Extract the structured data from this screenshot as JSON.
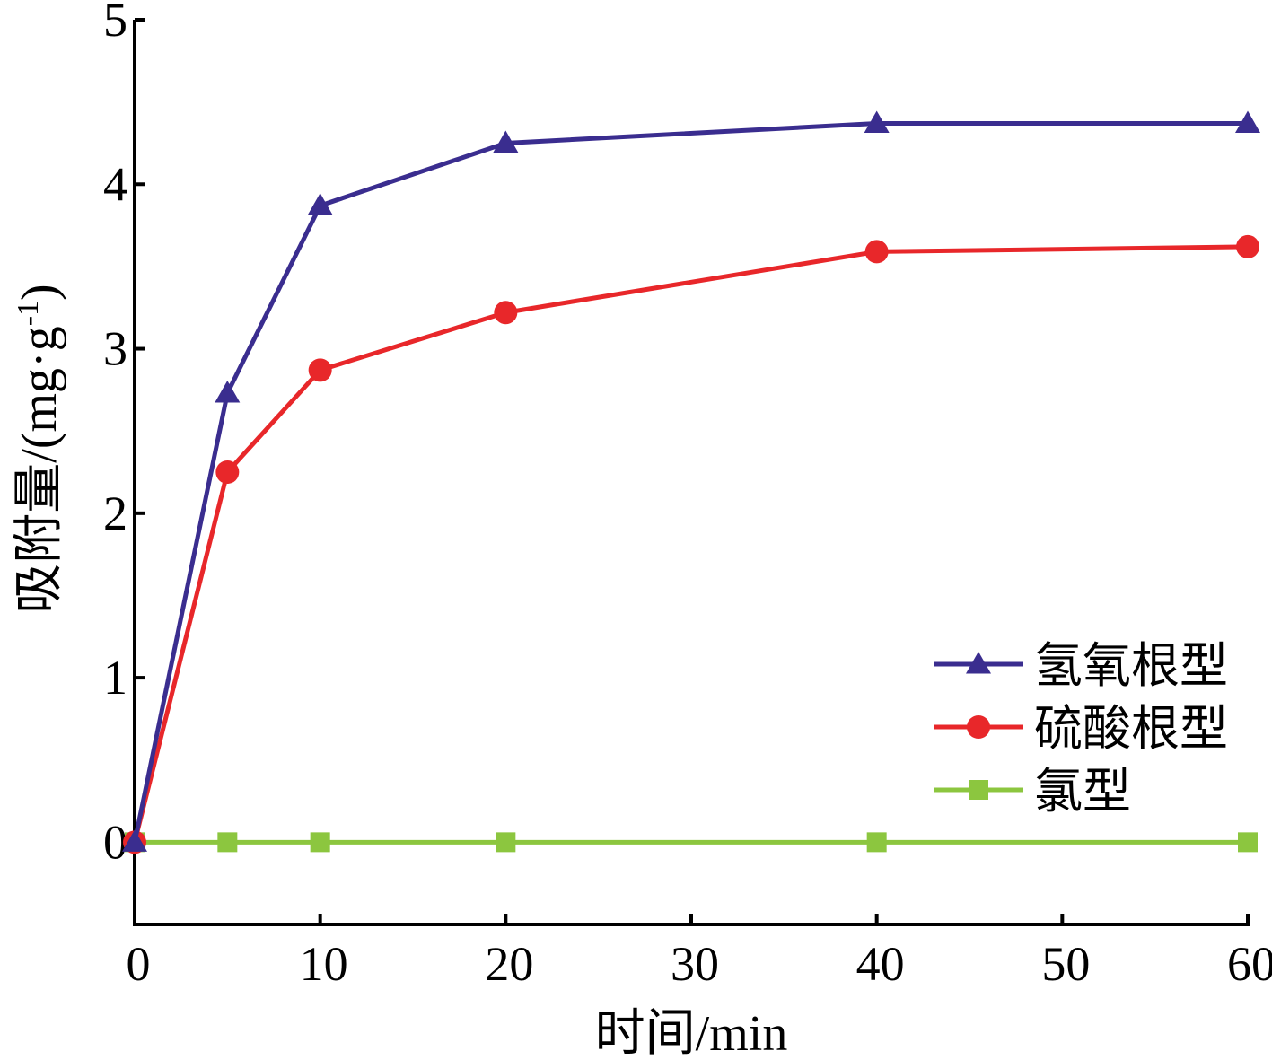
{
  "chart_data": {
    "type": "line",
    "x": [
      0,
      5,
      10,
      20,
      40,
      60
    ],
    "xlabel": "时间/min",
    "ylabel": "吸附量/(mg·g-1)",
    "ylabel_main": "吸附量/(mg·g",
    "ylabel_sup": "-1",
    "ylabel_close": ")",
    "xlim": [
      0,
      60
    ],
    "ylim": [
      -0.5,
      5
    ],
    "xticks": [
      0,
      10,
      20,
      30,
      40,
      50,
      60
    ],
    "yticks": [
      0,
      1,
      2,
      3,
      4,
      5
    ],
    "grid": false,
    "legend_position": "bottom-right",
    "series": [
      {
        "name": "氢氧根型",
        "color": "#3a2d8f",
        "marker": "triangle",
        "values": [
          0,
          2.73,
          3.87,
          4.25,
          4.37,
          4.37
        ]
      },
      {
        "name": "硫酸根型",
        "color": "#e8272a",
        "marker": "circle",
        "values": [
          0,
          2.25,
          2.87,
          3.22,
          3.59,
          3.62
        ]
      },
      {
        "name": "氯型",
        "color": "#8cc63f",
        "marker": "square",
        "values": [
          0,
          0,
          0,
          0,
          0,
          0
        ]
      }
    ]
  }
}
